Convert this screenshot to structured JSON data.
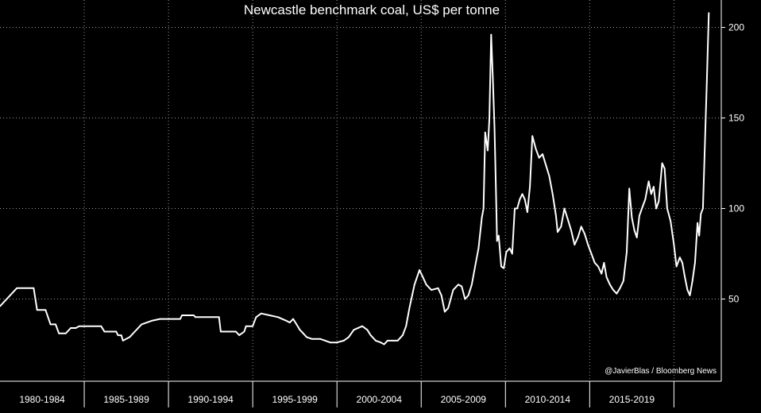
{
  "chart_data": {
    "type": "line",
    "title": "Newcastle benchmark coal, US$ per tonne",
    "credit": "@JavierBlas / Bloomberg News",
    "xlabel": "",
    "ylabel": "",
    "xlim": [
      1980,
      2022.15
    ],
    "ylim": [
      0,
      215
    ],
    "yticks": [
      50,
      100,
      150,
      200
    ],
    "ytick_labels": [
      "50",
      "100",
      "150",
      "200"
    ],
    "grid": true,
    "x_categories": [
      "1980-1984",
      "1985-1989",
      "1990-1994",
      "1995-1999",
      "2000-2004",
      "2005-2009",
      "2010-2014",
      "2015-2019"
    ],
    "series": [
      {
        "color": "#ffffff",
        "points": [
          [
            1980.0,
            46
          ],
          [
            1981.0,
            56
          ],
          [
            1982.0,
            56
          ],
          [
            1982.2,
            44
          ],
          [
            1982.7,
            44
          ],
          [
            1983.0,
            36
          ],
          [
            1983.3,
            36
          ],
          [
            1983.5,
            31
          ],
          [
            1983.9,
            31
          ],
          [
            1984.2,
            34
          ],
          [
            1984.5,
            34
          ],
          [
            1984.7,
            35
          ],
          [
            1986.0,
            35
          ],
          [
            1986.2,
            32
          ],
          [
            1986.9,
            32
          ],
          [
            1987.0,
            30
          ],
          [
            1987.2,
            30
          ],
          [
            1987.3,
            27
          ],
          [
            1987.7,
            29
          ],
          [
            1988.0,
            32
          ],
          [
            1988.4,
            36
          ],
          [
            1989.0,
            38
          ],
          [
            1989.5,
            39
          ],
          [
            1990.0,
            39
          ],
          [
            1990.7,
            39
          ],
          [
            1990.8,
            41
          ],
          [
            1991.5,
            41
          ],
          [
            1991.6,
            40
          ],
          [
            1993.0,
            40
          ],
          [
            1993.1,
            32
          ],
          [
            1994.0,
            32
          ],
          [
            1994.2,
            30
          ],
          [
            1994.5,
            32
          ],
          [
            1994.6,
            35
          ],
          [
            1995.0,
            35
          ],
          [
            1995.2,
            40
          ],
          [
            1995.5,
            42
          ],
          [
            1996.0,
            41
          ],
          [
            1996.5,
            40
          ],
          [
            1997.0,
            38
          ],
          [
            1997.2,
            37
          ],
          [
            1997.4,
            39
          ],
          [
            1997.6,
            36
          ],
          [
            1997.8,
            33
          ],
          [
            1998.0,
            31
          ],
          [
            1998.2,
            29
          ],
          [
            1998.5,
            28
          ],
          [
            1999.0,
            28
          ],
          [
            1999.3,
            27
          ],
          [
            1999.6,
            26
          ],
          [
            2000.0,
            26
          ],
          [
            2000.4,
            27
          ],
          [
            2000.7,
            29
          ],
          [
            2001.0,
            33
          ],
          [
            2001.5,
            35
          ],
          [
            2001.8,
            33
          ],
          [
            2002.0,
            30
          ],
          [
            2002.3,
            27
          ],
          [
            2002.6,
            26
          ],
          [
            2002.8,
            25
          ],
          [
            2003.0,
            27
          ],
          [
            2003.3,
            27
          ],
          [
            2003.6,
            27
          ],
          [
            2003.9,
            30
          ],
          [
            2004.1,
            35
          ],
          [
            2004.3,
            45
          ],
          [
            2004.6,
            58
          ],
          [
            2004.9,
            66
          ],
          [
            2005.1,
            62
          ],
          [
            2005.3,
            58
          ],
          [
            2005.6,
            55
          ],
          [
            2006.0,
            56
          ],
          [
            2006.2,
            52
          ],
          [
            2006.4,
            43
          ],
          [
            2006.6,
            45
          ],
          [
            2006.9,
            55
          ],
          [
            2007.2,
            58
          ],
          [
            2007.4,
            57
          ],
          [
            2007.6,
            50
          ],
          [
            2007.8,
            52
          ],
          [
            2008.0,
            58
          ],
          [
            2008.2,
            68
          ],
          [
            2008.4,
            78
          ],
          [
            2008.6,
            95
          ],
          [
            2008.7,
            100
          ],
          [
            2008.8,
            142
          ],
          [
            2008.95,
            132
          ],
          [
            2009.05,
            150
          ],
          [
            2009.15,
            196
          ],
          [
            2009.25,
            172
          ],
          [
            2009.35,
            145
          ],
          [
            2009.45,
            105
          ],
          [
            2009.5,
            82
          ],
          [
            2009.6,
            85
          ],
          [
            2009.75,
            68
          ],
          [
            2009.9,
            67
          ],
          [
            2010.05,
            76
          ],
          [
            2010.25,
            78
          ],
          [
            2010.4,
            75
          ],
          [
            2010.55,
            100
          ],
          [
            2010.7,
            100
          ],
          [
            2010.85,
            105
          ],
          [
            2011.0,
            108
          ],
          [
            2011.15,
            105
          ],
          [
            2011.3,
            98
          ],
          [
            2011.45,
            112
          ],
          [
            2011.6,
            140
          ],
          [
            2011.8,
            133
          ],
          [
            2012.0,
            128
          ],
          [
            2012.2,
            130
          ],
          [
            2012.4,
            124
          ],
          [
            2012.6,
            118
          ],
          [
            2012.8,
            108
          ],
          [
            2013.0,
            96
          ],
          [
            2013.1,
            87
          ],
          [
            2013.3,
            90
          ],
          [
            2013.5,
            100
          ],
          [
            2013.7,
            94
          ],
          [
            2013.9,
            88
          ],
          [
            2014.1,
            80
          ],
          [
            2014.3,
            84
          ],
          [
            2014.5,
            90
          ],
          [
            2014.7,
            86
          ],
          [
            2014.9,
            80
          ],
          [
            2015.1,
            75
          ],
          [
            2015.3,
            70
          ],
          [
            2015.5,
            68
          ],
          [
            2015.7,
            64
          ],
          [
            2015.85,
            70
          ],
          [
            2016.0,
            62
          ],
          [
            2016.2,
            58
          ],
          [
            2016.4,
            55
          ],
          [
            2016.6,
            53
          ],
          [
            2016.8,
            56
          ],
          [
            2017.0,
            60
          ],
          [
            2017.2,
            76
          ],
          [
            2017.35,
            111
          ],
          [
            2017.5,
            95
          ],
          [
            2017.65,
            88
          ],
          [
            2017.8,
            84
          ],
          [
            2017.95,
            96
          ],
          [
            2018.1,
            100
          ],
          [
            2018.3,
            105
          ],
          [
            2018.5,
            115
          ],
          [
            2018.65,
            108
          ],
          [
            2018.8,
            112
          ],
          [
            2018.95,
            100
          ],
          [
            2019.1,
            104
          ],
          [
            2019.3,
            125
          ],
          [
            2019.45,
            122
          ],
          [
            2019.6,
            100
          ],
          [
            2019.8,
            93
          ],
          [
            2020.0,
            80
          ],
          [
            2020.15,
            68
          ],
          [
            2020.35,
            73
          ],
          [
            2020.5,
            70
          ],
          [
            2020.65,
            62
          ],
          [
            2020.8,
            55
          ],
          [
            2020.95,
            52
          ],
          [
            2021.1,
            60
          ],
          [
            2021.25,
            70
          ],
          [
            2021.4,
            92
          ],
          [
            2021.5,
            85
          ],
          [
            2021.6,
            97
          ],
          [
            2021.72,
            100
          ],
          [
            2021.82,
            130
          ],
          [
            2021.95,
            170
          ],
          [
            2022.07,
            208
          ]
        ]
      }
    ]
  }
}
